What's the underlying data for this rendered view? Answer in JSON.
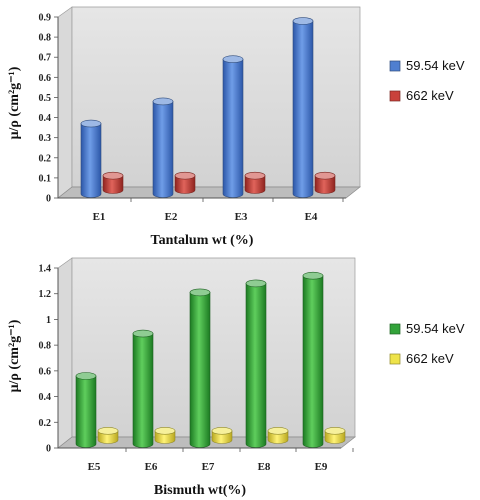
{
  "chart_data": [
    {
      "type": "bar",
      "categories": [
        "E1",
        "E2",
        "E3",
        "E4"
      ],
      "series": [
        {
          "name": "59.54 keV",
          "values": [
            0.37,
            0.48,
            0.69,
            0.88
          ],
          "color": "#4f7fd0"
        },
        {
          "name": "662 keV",
          "values": [
            0.075,
            0.075,
            0.075,
            0.075
          ],
          "color": "#c9423b"
        }
      ],
      "ticks": [
        "0",
        "0.1",
        "0.2",
        "0.3",
        "0.4",
        "0.5",
        "0.6",
        "0.7",
        "0.8",
        "0.9"
      ],
      "ylim": [
        0,
        0.9
      ],
      "xlabel": "Tantalum wt (%)",
      "ylabel": "μ/ρ (cm²g⁻¹)",
      "legend_position": "right"
    },
    {
      "type": "bar",
      "categories": [
        "E5",
        "E6",
        "E7",
        "E8",
        "E9"
      ],
      "series": [
        {
          "name": "59.54 keV",
          "values": [
            0.56,
            0.89,
            1.21,
            1.28,
            1.34
          ],
          "color": "#33a33a"
        },
        {
          "name": "662 keV",
          "values": [
            0.075,
            0.075,
            0.075,
            0.075,
            0.075
          ],
          "color": "#eee34a"
        }
      ],
      "ticks": [
        "0",
        "0.2",
        "0.4",
        "0.6",
        "0.8",
        "1",
        "1.2",
        "1.4"
      ],
      "ylim": [
        0,
        1.4
      ],
      "xlabel": "Bismuth wt(%)",
      "ylabel": "μ/ρ (cm²g⁻¹)",
      "legend_position": "right"
    }
  ]
}
